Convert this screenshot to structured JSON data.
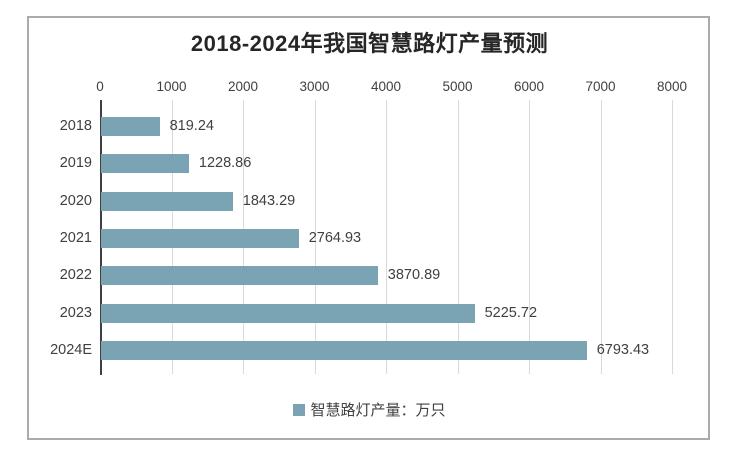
{
  "chart_data": {
    "type": "bar",
    "orientation": "horizontal",
    "title": "2018-2024年我国智慧路灯产量预测",
    "categories": [
      "2018",
      "2019",
      "2020",
      "2021",
      "2022",
      "2023",
      "2024E"
    ],
    "values": [
      819.24,
      1228.86,
      1843.29,
      2764.93,
      3870.89,
      5225.72,
      6793.43
    ],
    "value_labels": [
      "819.24",
      "1228.86",
      "1843.29",
      "2764.93",
      "3870.89",
      "5225.72",
      "6793.43"
    ],
    "x_axis": {
      "position": "top",
      "min": 0,
      "max": 8000,
      "tick_labels": [
        "0",
        "1000",
        "2000",
        "3000",
        "4000",
        "5000",
        "6000",
        "7000",
        "8000"
      ]
    },
    "grid": true,
    "bar_color": "#7AA4B4",
    "axis_line_color": "#404040",
    "gridline_color": "#d9d9d9",
    "legend": {
      "position": "bottom",
      "label": "智慧路灯产量：万只",
      "marker_color": "#7AA4B4"
    }
  }
}
